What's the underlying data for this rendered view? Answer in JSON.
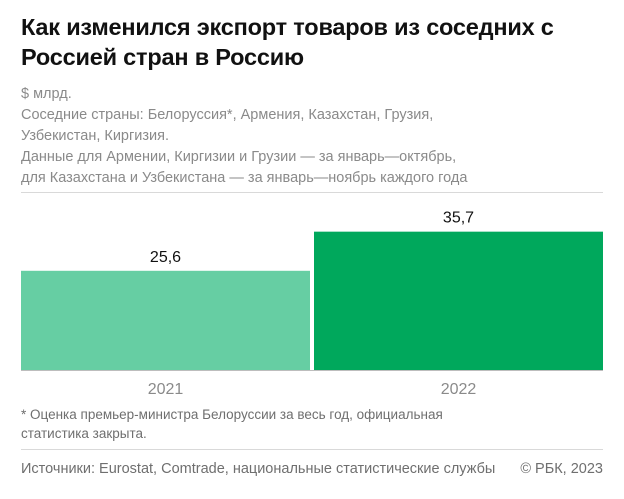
{
  "chart_data": {
    "type": "bar",
    "title": "Как изменился экспорт товаров из соседних с Россией стран в Россию",
    "subtitle": [
      "$ млрд.",
      "Соседние страны: Белоруссия*, Армения, Казахстан, Грузия,",
      "Узбекистан, Киргизия.",
      "Данные для Армении, Киргизии и Грузии — за январь—октябрь,",
      "для Казахстана и Узбекистана — за январь—ноябрь каждого года"
    ],
    "categories": [
      "2021",
      "2022"
    ],
    "values": [
      25.6,
      35.7
    ],
    "value_labels": [
      "25,6",
      "35,7"
    ],
    "ylabel": "$ млрд.",
    "ylim": [
      0,
      40
    ],
    "grid": false,
    "colors": [
      "#66cea3",
      "#00a85c"
    ]
  },
  "footnote": [
    "* Оценка премьер-министра Белоруссии за весь год, официальная",
    "статистика закрыта."
  ],
  "source": "Источники: Eurostat, Comtrade, национальные статистические службы",
  "copyright": "© РБК, 2023",
  "colors": {
    "separator": "#d9d9d9",
    "baseline": "#bdbdbd",
    "muted_text": "#8a8a8a"
  }
}
